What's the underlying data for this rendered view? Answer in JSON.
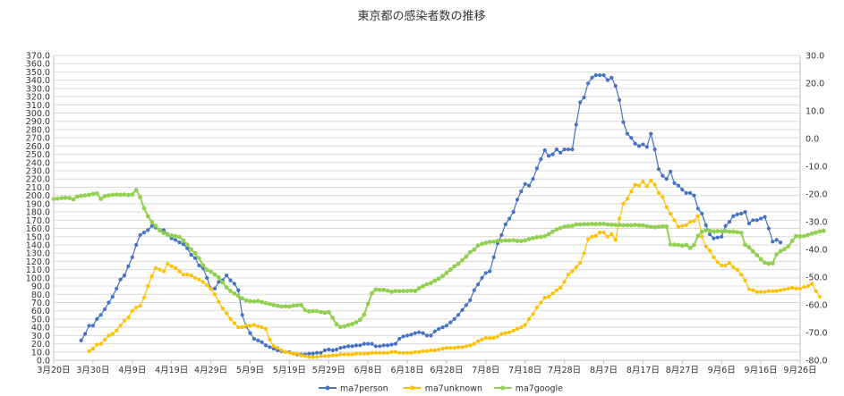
{
  "chart_data": {
    "type": "line",
    "title": "東京都の感染者数の推移",
    "xlabel": "",
    "ylabel": "",
    "y_left": {
      "min": 0,
      "max": 370,
      "step": 10
    },
    "y_right": {
      "min": -80,
      "max": 30,
      "step": 10
    },
    "x_start": "3月20日",
    "x_ticks": [
      "3月20日",
      "3月30日",
      "4月9日",
      "4月19日",
      "4月29日",
      "5月9日",
      "5月19日",
      "5月29日",
      "6月8日",
      "6月18日",
      "6月28日",
      "7月8日",
      "7月18日",
      "7月28日",
      "8月7日",
      "8月17日",
      "8月27日",
      "9月6日",
      "9月16日",
      "9月26日"
    ],
    "grid": true,
    "legend_position": "bottom",
    "series": [
      {
        "name": "ma7person",
        "color": "#4472c4",
        "axis": "left",
        "start_day": 7,
        "values": [
          24,
          32,
          42,
          42,
          50,
          55,
          62,
          70,
          77,
          87,
          98,
          103,
          114,
          125,
          140,
          152,
          155,
          158,
          163,
          161,
          158,
          158,
          153,
          148,
          146,
          143,
          141,
          136,
          128,
          124,
          115,
          112,
          100,
          87,
          87,
          95,
          97,
          103,
          97,
          93,
          85,
          55,
          41,
          33,
          26,
          24,
          22,
          18,
          16,
          14,
          12,
          11,
          10,
          10,
          8,
          7,
          7,
          7,
          8,
          8,
          9,
          9,
          12,
          13,
          12,
          13,
          15,
          16,
          17,
          17,
          18,
          18,
          20,
          20,
          20,
          17,
          17,
          18,
          18,
          19,
          20,
          26,
          29,
          30,
          31,
          33,
          34,
          33,
          30,
          30,
          35,
          38,
          40,
          42,
          46,
          50,
          55,
          61,
          67,
          73,
          85,
          92,
          100,
          106,
          108,
          125,
          142,
          152,
          165,
          172,
          180,
          195,
          205,
          214,
          212,
          220,
          233,
          244,
          255,
          248,
          250,
          256,
          252,
          256,
          256,
          256,
          286,
          313,
          319,
          336,
          343,
          346,
          346,
          346,
          340,
          343,
          333,
          316,
          289,
          275,
          270,
          263,
          260,
          262,
          259,
          275,
          256,
          232,
          224,
          220,
          229,
          215,
          212,
          207,
          203,
          203,
          200,
          184,
          178,
          164,
          153,
          148,
          149,
          150,
          163,
          168,
          175,
          177,
          178,
          180,
          166,
          170,
          170,
          172,
          174,
          160,
          144,
          146,
          143
        ]
      },
      {
        "name": "ma7unknown",
        "color": "#ffc000",
        "axis": "left",
        "start_day": 9,
        "values": [
          11,
          14,
          19,
          20,
          25,
          30,
          32,
          36,
          42,
          48,
          52,
          60,
          64,
          66,
          76,
          90,
          102,
          112,
          110,
          108,
          117,
          114,
          112,
          108,
          104,
          104,
          103,
          100,
          98,
          95,
          91,
          87,
          80,
          71,
          63,
          57,
          50,
          45,
          40,
          40,
          42,
          42,
          43,
          41,
          40,
          38,
          25,
          17,
          15,
          12,
          10,
          9,
          8,
          8,
          6,
          5,
          4,
          4,
          4,
          5,
          5,
          5,
          6,
          6,
          7,
          7,
          7,
          7,
          8,
          8,
          8,
          8,
          9,
          9,
          9,
          9,
          9,
          10,
          10,
          9,
          9,
          9,
          9,
          10,
          10,
          11,
          11,
          12,
          12,
          13,
          14,
          15,
          15,
          15,
          16,
          16,
          17,
          18,
          20,
          23,
          25,
          27,
          27,
          27,
          29,
          32,
          33,
          34,
          36,
          38,
          40,
          43,
          50,
          56,
          64,
          70,
          76,
          77,
          81,
          85,
          88,
          95,
          104,
          108,
          113,
          118,
          130,
          147,
          150,
          151,
          155,
          155,
          150,
          153,
          146,
          172,
          190,
          196,
          205,
          213,
          212,
          217,
          211,
          218,
          213,
          203,
          198,
          186,
          178,
          170,
          162,
          163,
          164,
          168,
          169,
          175,
          150,
          138,
          133,
          125,
          119,
          115,
          115,
          118,
          113,
          110,
          104,
          97,
          86,
          85,
          83,
          83,
          83,
          84,
          84,
          84,
          85,
          86,
          87,
          88,
          87,
          87,
          89,
          90,
          93,
          84,
          77
        ]
      },
      {
        "name": "ma7google",
        "color": "#92d050",
        "axis": "right",
        "start_day": 0,
        "values": [
          -21.8,
          -21.7,
          -21.5,
          -21.4,
          -21.5,
          -21.9,
          -20.9,
          -20.7,
          -20.5,
          -20.3,
          -20.0,
          -19.8,
          -21.8,
          -20.8,
          -20.5,
          -20.3,
          -20.2,
          -20.3,
          -20.2,
          -20.4,
          -20.2,
          -18.6,
          -21.2,
          -25.2,
          -28.0,
          -30.2,
          -31.5,
          -33.2,
          -34.1,
          -34.7,
          -35.0,
          -35.2,
          -35.5,
          -36.8,
          -38.3,
          -40.0,
          -41.4,
          -43.2,
          -45.7,
          -47.4,
          -48.1,
          -49.1,
          -50.1,
          -51.9,
          -53.7,
          -55.0,
          -55.9,
          -56.8,
          -57.7,
          -58.4,
          -58.7,
          -58.8,
          -58.6,
          -59.0,
          -59.4,
          -59.7,
          -60.1,
          -60.4,
          -60.6,
          -60.5,
          -60.6,
          -60.3,
          -60.2,
          -60.1,
          -61.9,
          -62.4,
          -62.3,
          -62.3,
          -62.6,
          -62.9,
          -62.6,
          -64.7,
          -67.0,
          -68.0,
          -67.8,
          -67.3,
          -66.9,
          -66.3,
          -65.4,
          -63.5,
          -59.6,
          -55.8,
          -54.5,
          -54.6,
          -54.6,
          -54.9,
          -55.3,
          -55.0,
          -55.1,
          -55.0,
          -55.0,
          -54.9,
          -55.0,
          -54.1,
          -53.3,
          -52.6,
          -52.1,
          -51.3,
          -50.6,
          -49.6,
          -48.5,
          -47.3,
          -46.1,
          -45.2,
          -43.9,
          -42.6,
          -41.0,
          -40.1,
          -38.6,
          -38.0,
          -37.6,
          -37.3,
          -37.2,
          -36.9,
          -36.9,
          -36.8,
          -36.8,
          -36.7,
          -36.9,
          -37.0,
          -36.7,
          -36.3,
          -35.9,
          -35.6,
          -35.5,
          -35.2,
          -34.5,
          -33.6,
          -32.8,
          -32.3,
          -31.8,
          -31.6,
          -31.5,
          -31.0,
          -31.0,
          -30.9,
          -30.9,
          -30.8,
          -30.9,
          -30.8,
          -30.8,
          -31.0,
          -31.1,
          -31.2,
          -31.2,
          -31.3,
          -31.3,
          -31.3,
          -31.2,
          -31.3,
          -31.4,
          -31.6,
          -31.9,
          -32.0,
          -31.8,
          -31.7,
          -31.7,
          -38.2,
          -38.3,
          -38.4,
          -38.6,
          -38.4,
          -39.5,
          -38.4,
          -35.1,
          -33.6,
          -33.1,
          -33.3,
          -33.5,
          -33.4,
          -33.5,
          -33.4,
          -33.6,
          -33.6,
          -33.8,
          -34.0,
          -38.3,
          -39.3,
          -40.7,
          -42.1,
          -43.5,
          -44.8,
          -45.2,
          -45.0,
          -41.8,
          -40.6,
          -39.9,
          -38.9,
          -36.9,
          -35.2,
          -35.3,
          -35.2,
          -34.8,
          -34.3,
          -33.9,
          -33.5,
          -33.3
        ]
      }
    ]
  }
}
